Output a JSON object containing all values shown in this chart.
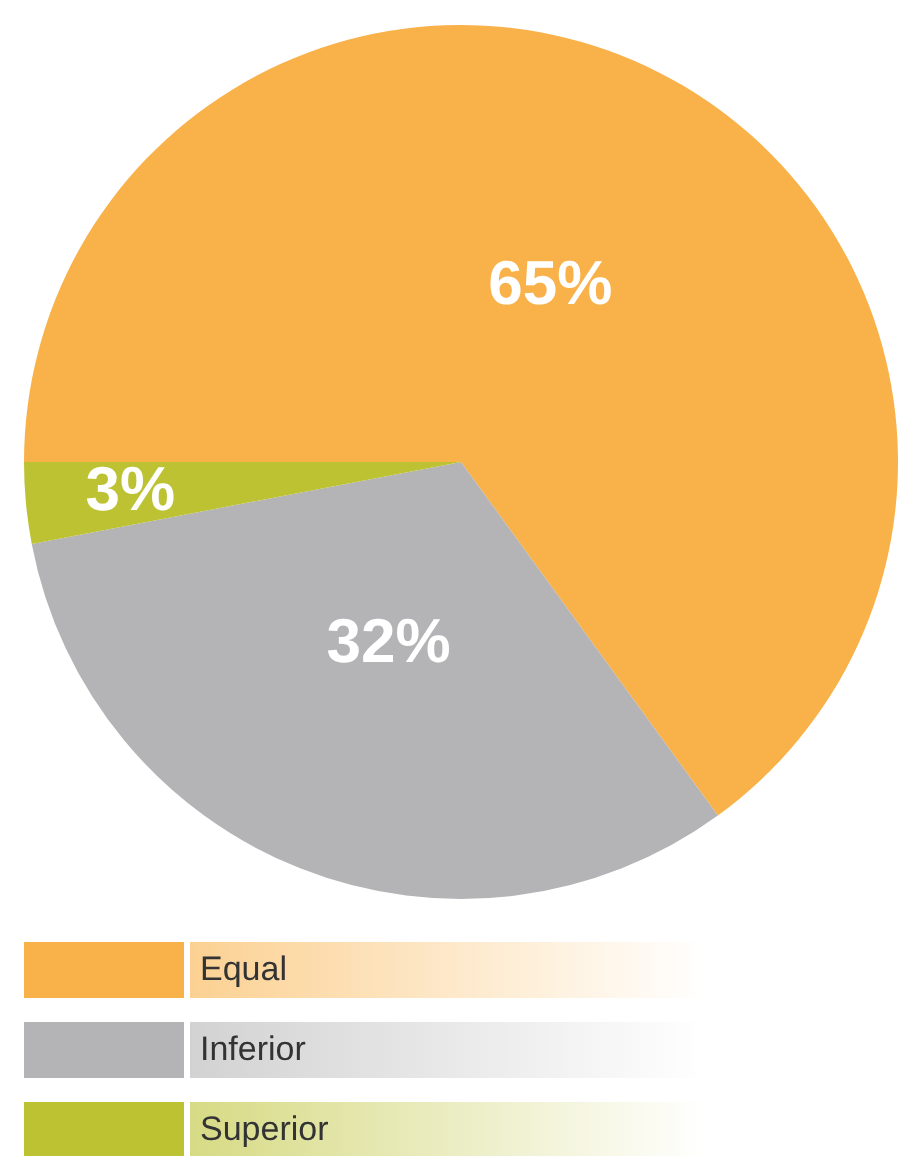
{
  "chart_data": {
    "type": "pie",
    "categories": [
      "Equal",
      "Inferior",
      "Superior"
    ],
    "values": [
      65,
      32,
      3
    ],
    "colors": [
      "#f9b24a",
      "#b4b4b6",
      "#bcc232"
    ],
    "value_labels": [
      "65%",
      "32%",
      "3%"
    ],
    "legend": "bottom"
  }
}
